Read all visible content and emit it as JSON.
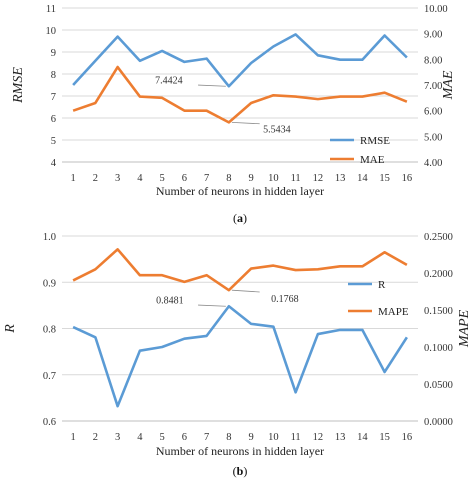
{
  "chart_data": [
    {
      "panel_label": "a",
      "type": "line",
      "xlabel": "Number of neurons in hidden layer",
      "x": [
        1,
        2,
        3,
        4,
        5,
        6,
        7,
        8,
        9,
        10,
        11,
        12,
        13,
        14,
        15,
        16
      ],
      "ylabel_left": "RMSE",
      "ylabel_right": "MAE",
      "ylim_left": [
        4,
        11
      ],
      "yticks_left": [
        "4",
        "5",
        "6",
        "7",
        "8",
        "9",
        "10",
        "11"
      ],
      "ylim_right": [
        4.0,
        10.0
      ],
      "yticks_right": [
        "4.00",
        "5.00",
        "6.00",
        "7.00",
        "8.00",
        "9.00",
        "10.00"
      ],
      "grid": true,
      "legend_position": "bottom-right",
      "series": [
        {
          "name": "RMSE",
          "axis": "left",
          "color": "#5b9bd5",
          "values": [
            7.5,
            8.6,
            9.7,
            8.6,
            9.05,
            8.55,
            8.7,
            7.4424,
            8.5,
            9.25,
            9.8,
            8.85,
            8.65,
            8.65,
            9.75,
            8.75
          ]
        },
        {
          "name": "MAE",
          "axis": "right",
          "color": "#ed7d31",
          "values": [
            6.0,
            6.3,
            7.7,
            6.55,
            6.5,
            6.0,
            6.0,
            5.5434,
            6.3,
            6.6,
            6.55,
            6.45,
            6.55,
            6.55,
            6.7,
            6.35
          ]
        }
      ],
      "annotations": [
        {
          "text": "7.4424",
          "series": "RMSE",
          "x": 8
        },
        {
          "text": "5.5434",
          "series": "MAE",
          "x": 8
        }
      ]
    },
    {
      "panel_label": "b",
      "type": "line",
      "xlabel": "Number of neurons in hidden layer",
      "x": [
        1,
        2,
        3,
        4,
        5,
        6,
        7,
        8,
        9,
        10,
        11,
        12,
        13,
        14,
        15,
        16
      ],
      "ylabel_left": "R",
      "ylabel_right": "MAPE",
      "ylim_left": [
        0.6,
        1.0
      ],
      "yticks_left": [
        "0.6",
        "0.7",
        "0.8",
        "0.9",
        "1.0"
      ],
      "ylim_right": [
        0.0,
        0.25
      ],
      "yticks_right": [
        "0.0000",
        "0.0500",
        "0.1000",
        "0.1500",
        "0.2000",
        "0.2500"
      ],
      "grid": true,
      "legend_position": "right",
      "series": [
        {
          "name": "R",
          "axis": "left",
          "color": "#5b9bd5",
          "values": [
            0.803,
            0.781,
            0.632,
            0.752,
            0.76,
            0.778,
            0.784,
            0.8481,
            0.81,
            0.804,
            0.662,
            0.788,
            0.797,
            0.797,
            0.706,
            0.781
          ]
        },
        {
          "name": "MAPE",
          "axis": "right",
          "color": "#ed7d31",
          "values": [
            0.19,
            0.205,
            0.232,
            0.197,
            0.197,
            0.188,
            0.197,
            0.1768,
            0.206,
            0.21,
            0.204,
            0.205,
            0.209,
            0.209,
            0.228,
            0.211
          ]
        }
      ],
      "annotations": [
        {
          "text": "0.8481",
          "series": "R",
          "x": 8
        },
        {
          "text": "0.1768",
          "series": "MAPE",
          "x": 8
        }
      ]
    }
  ]
}
